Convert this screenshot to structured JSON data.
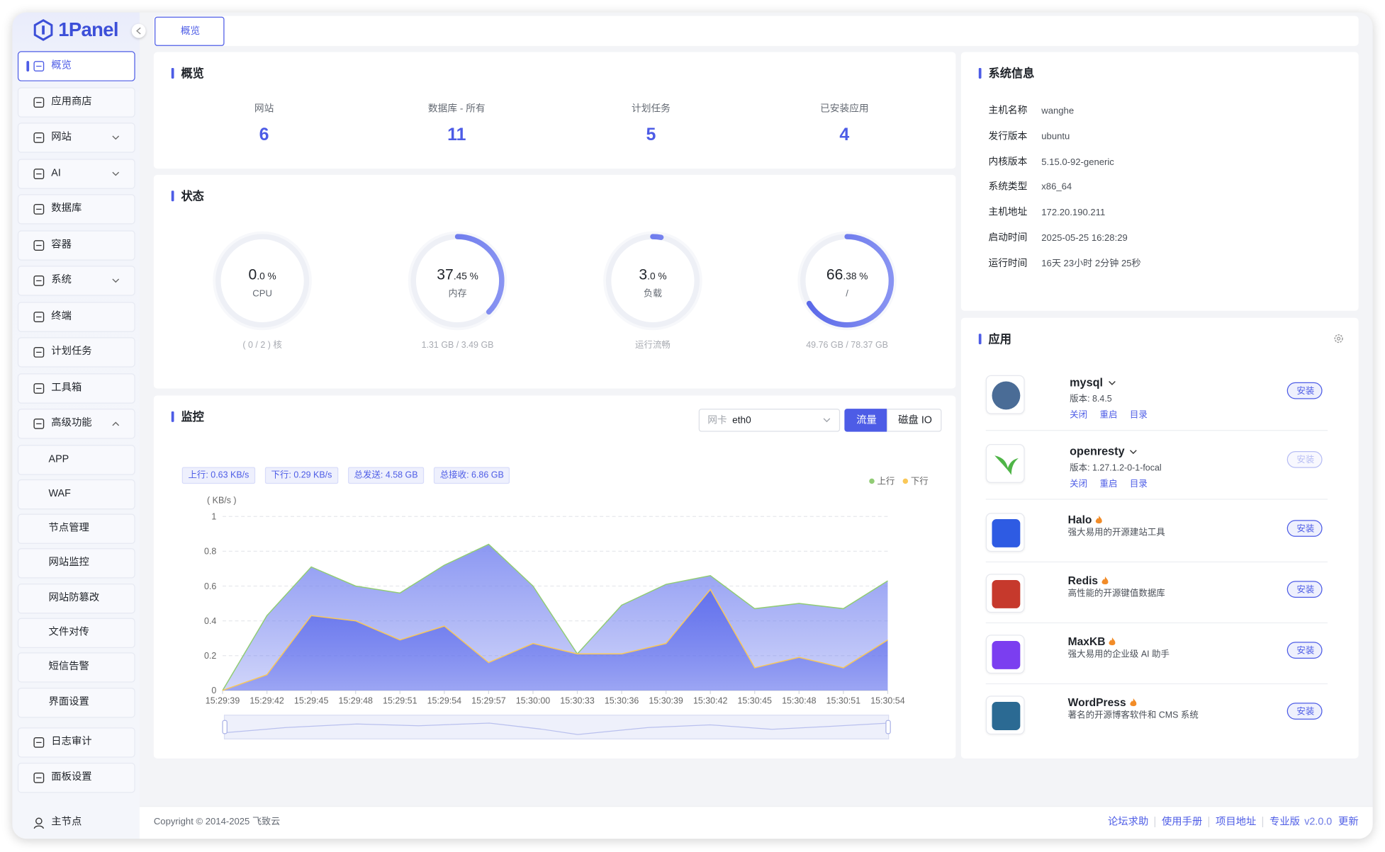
{
  "brand": "1Panel",
  "tab": "概览",
  "sidebar": {
    "active": 0,
    "items": [
      {
        "label": "概览"
      },
      {
        "label": "应用商店"
      },
      {
        "label": "网站",
        "expandable": true
      },
      {
        "label": "AI",
        "expandable": true
      },
      {
        "label": "数据库"
      },
      {
        "label": "容器"
      },
      {
        "label": "系统",
        "expandable": true
      },
      {
        "label": "终端"
      },
      {
        "label": "计划任务"
      },
      {
        "label": "工具箱"
      },
      {
        "label": "高级功能",
        "expandable": true,
        "expanded": true,
        "children": [
          "APP",
          "WAF",
          "节点管理",
          "网站监控",
          "网站防篡改",
          "文件对传",
          "短信告警",
          "界面设置"
        ]
      },
      {
        "label": "日志审计"
      },
      {
        "label": "面板设置"
      }
    ],
    "node": "主节点"
  },
  "overview": {
    "title": "概览",
    "stats": [
      {
        "label": "网站",
        "value": 6
      },
      {
        "label": "数据库 - 所有",
        "value": 11
      },
      {
        "label": "计划任务",
        "value": 5
      },
      {
        "label": "已安装应用",
        "value": 4
      }
    ]
  },
  "status": {
    "title": "状态",
    "gauges": [
      {
        "value": 0,
        "int_label": "0",
        "dec_label": ".0",
        "unit": "%",
        "name": "CPU",
        "detail": "( 0 / 2 ) 核"
      },
      {
        "value": 37.45,
        "int_label": "37",
        "dec_label": ".45",
        "unit": "%",
        "name": "内存",
        "detail": "1.31 GB / 3.49 GB"
      },
      {
        "value": 3,
        "int_label": "3",
        "dec_label": ".0",
        "unit": "%",
        "name": "负载",
        "detail": "运行流畅"
      },
      {
        "value": 66.38,
        "int_label": "66",
        "dec_label": ".38",
        "unit": "%",
        "name": "/",
        "detail": "49.76 GB / 78.37 GB"
      }
    ]
  },
  "monitor": {
    "title": "监控",
    "select_label": "网卡",
    "select_value": "eth0",
    "buttons": [
      "流量",
      "磁盘 IO"
    ],
    "active_button": 0,
    "badges": [
      "上行: 0.63 KB/s",
      "下行: 0.29 KB/s",
      "总发送: 4.58 GB",
      "总接收: 6.86 GB"
    ]
  },
  "chart_data": {
    "type": "area",
    "y_unit_label": "( KB/s )",
    "categories": [
      "15:29:39",
      "15:29:42",
      "15:29:45",
      "15:29:48",
      "15:29:51",
      "15:29:54",
      "15:29:57",
      "15:30:00",
      "15:30:33",
      "15:30:36",
      "15:30:39",
      "15:30:42",
      "15:30:45",
      "15:30:48",
      "15:30:51",
      "15:30:54"
    ],
    "series": [
      {
        "name": "上行",
        "color": "#91cc75",
        "fill": "#7886f0",
        "values": [
          0,
          0.43,
          0.71,
          0.6,
          0.56,
          0.72,
          0.84,
          0.6,
          0.21,
          0.49,
          0.61,
          0.66,
          0.47,
          0.5,
          0.47,
          0.63
        ]
      },
      {
        "name": "下行",
        "color": "#fac858",
        "fill": "#5d6cec",
        "values": [
          0,
          0.09,
          0.43,
          0.4,
          0.29,
          0.37,
          0.16,
          0.27,
          0.21,
          0.21,
          0.27,
          0.58,
          0.13,
          0.19,
          0.13,
          0.29
        ]
      }
    ],
    "ylim": [
      0,
      1
    ],
    "yticks": [
      0,
      0.2,
      0.4,
      0.6,
      0.8,
      1
    ],
    "grid": true,
    "legend": "top-right"
  },
  "system_info": {
    "title": "系统信息",
    "rows": [
      [
        "主机名称",
        "wanghe"
      ],
      [
        "发行版本",
        "ubuntu"
      ],
      [
        "内核版本",
        "5.15.0-92-generic"
      ],
      [
        "系统类型",
        "x86_64"
      ],
      [
        "主机地址",
        "172.20.190.211"
      ],
      [
        "启动时间",
        "2025-05-25 16:28:29"
      ],
      [
        "运行时间",
        "16天 23小时 2分钟 25秒"
      ]
    ]
  },
  "apps": {
    "title": "应用",
    "items": [
      {
        "name": "mysql",
        "version": "版本: 8.4.5",
        "actions": [
          "关闭",
          "重启",
          "目录"
        ],
        "button": "安装",
        "icon_color": "#4a6c96"
      },
      {
        "name": "openresty",
        "version": "版本: 1.27.1.2-0-1-focal",
        "actions": [
          "关闭",
          "重启",
          "目录"
        ],
        "button": "安装",
        "disabled": true,
        "icon_color": "#4fb547"
      },
      {
        "name": "Halo",
        "description": "强大易用的开源建站工具",
        "hot": true,
        "button": "安装",
        "icon_color": "#2e5be3"
      },
      {
        "name": "Redis",
        "description": "高性能的开源键值数据库",
        "hot": true,
        "button": "安装",
        "icon_color": "#c6392c"
      },
      {
        "name": "MaxKB",
        "description": "强大易用的企业级 AI 助手",
        "hot": true,
        "button": "安装",
        "icon_color": "#7b3ef0"
      },
      {
        "name": "WordPress",
        "description": "著名的开源博客软件和 CMS 系统",
        "hot": true,
        "button": "安装",
        "icon_color": "#2b6a93"
      }
    ]
  },
  "footer": {
    "copyright": "Copyright © 2014-2025 飞致云",
    "links": [
      "论坛求助",
      "使用手册",
      "项目地址",
      "专业版"
    ],
    "version": "v2.0.0",
    "update": "更新"
  }
}
